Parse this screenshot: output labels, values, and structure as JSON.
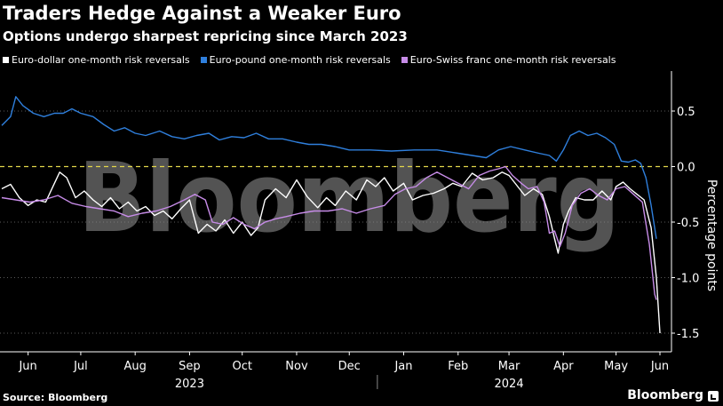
{
  "header": {
    "title": "Traders Hedge Against a Weaker Euro",
    "subtitle": "Options undergo sharpest repricing since March 2023"
  },
  "footer": {
    "source": "Source: Bloomberg",
    "brand": "Bloomberg"
  },
  "watermark": "Bloomberg",
  "colors": {
    "background": "#000000",
    "eurusd": "#ffffff",
    "eurgbp": "#2f7fdc",
    "eurchf": "#c78ce8",
    "zero_line": "#e3d64a",
    "grid": "#5a5a5a"
  },
  "chart_data": {
    "type": "line",
    "title": "Traders Hedge Against a Weaker Euro",
    "ylabel": "Percentage points",
    "ylim": [
      -1.55,
      0.8
    ],
    "yticks": [
      0.5,
      0.0,
      -0.5,
      -1.0,
      -1.5
    ],
    "ytick_labels": [
      "0.5",
      "0.0",
      "-0.5",
      "-1.0",
      "-1.5"
    ],
    "xlim": [
      0,
      375
    ],
    "x_unit": "days",
    "x_ticks": [
      {
        "label": "Jun",
        "x": 15
      },
      {
        "label": "Jul",
        "x": 45
      },
      {
        "label": "Aug",
        "x": 76
      },
      {
        "label": "Sep",
        "x": 107
      },
      {
        "label": "Oct",
        "x": 137
      },
      {
        "label": "Nov",
        "x": 168
      },
      {
        "label": "Dec",
        "x": 198
      },
      {
        "label": "Jan",
        "x": 229
      },
      {
        "label": "Feb",
        "x": 260
      },
      {
        "label": "Mar",
        "x": 289
      },
      {
        "label": "Apr",
        "x": 320
      },
      {
        "label": "May",
        "x": 350
      },
      {
        "label": "Jun",
        "x": 375
      }
    ],
    "year_labels": [
      {
        "label": "2023",
        "x": 107
      },
      {
        "label": "2024",
        "x": 289
      }
    ],
    "year_divider_x": 214,
    "reference_line": {
      "y": 0.0,
      "style": "dashed"
    },
    "grid": true,
    "legend_position": "top",
    "series": [
      {
        "name": "Euro-dollar one-month risk reversals",
        "color": "#ffffff",
        "points": [
          [
            0,
            -0.2
          ],
          [
            5,
            -0.16
          ],
          [
            10,
            -0.28
          ],
          [
            15,
            -0.35
          ],
          [
            20,
            -0.3
          ],
          [
            25,
            -0.32
          ],
          [
            30,
            -0.15
          ],
          [
            33,
            -0.05
          ],
          [
            37,
            -0.1
          ],
          [
            42,
            -0.28
          ],
          [
            47,
            -0.22
          ],
          [
            52,
            -0.3
          ],
          [
            57,
            -0.36
          ],
          [
            62,
            -0.28
          ],
          [
            67,
            -0.38
          ],
          [
            72,
            -0.32
          ],
          [
            77,
            -0.4
          ],
          [
            82,
            -0.36
          ],
          [
            87,
            -0.44
          ],
          [
            92,
            -0.4
          ],
          [
            97,
            -0.47
          ],
          [
            102,
            -0.38
          ],
          [
            107,
            -0.3
          ],
          [
            112,
            -0.6
          ],
          [
            117,
            -0.52
          ],
          [
            122,
            -0.58
          ],
          [
            127,
            -0.48
          ],
          [
            132,
            -0.6
          ],
          [
            137,
            -0.5
          ],
          [
            142,
            -0.62
          ],
          [
            146,
            -0.55
          ],
          [
            150,
            -0.3
          ],
          [
            156,
            -0.2
          ],
          [
            162,
            -0.28
          ],
          [
            168,
            -0.12
          ],
          [
            174,
            -0.27
          ],
          [
            180,
            -0.37
          ],
          [
            185,
            -0.28
          ],
          [
            190,
            -0.35
          ],
          [
            196,
            -0.22
          ],
          [
            202,
            -0.3
          ],
          [
            208,
            -0.12
          ],
          [
            213,
            -0.18
          ],
          [
            218,
            -0.1
          ],
          [
            223,
            -0.22
          ],
          [
            229,
            -0.15
          ],
          [
            234,
            -0.3
          ],
          [
            240,
            -0.26
          ],
          [
            246,
            -0.24
          ],
          [
            252,
            -0.2
          ],
          [
            257,
            -0.15
          ],
          [
            262,
            -0.18
          ],
          [
            268,
            -0.06
          ],
          [
            274,
            -0.12
          ],
          [
            280,
            -0.1
          ],
          [
            285,
            -0.05
          ],
          [
            289,
            -0.08
          ],
          [
            294,
            -0.18
          ],
          [
            298,
            -0.26
          ],
          [
            303,
            -0.2
          ],
          [
            308,
            -0.25
          ],
          [
            312,
            -0.45
          ],
          [
            315,
            -0.65
          ],
          [
            317,
            -0.78
          ],
          [
            320,
            -0.52
          ],
          [
            323,
            -0.4
          ],
          [
            327,
            -0.28
          ],
          [
            332,
            -0.3
          ],
          [
            337,
            -0.3
          ],
          [
            342,
            -0.22
          ],
          [
            347,
            -0.3
          ],
          [
            350,
            -0.18
          ],
          [
            354,
            -0.14
          ],
          [
            358,
            -0.2
          ],
          [
            362,
            -0.25
          ],
          [
            366,
            -0.3
          ],
          [
            370,
            -0.55
          ],
          [
            373,
            -1.0
          ],
          [
            375,
            -1.5
          ]
        ]
      },
      {
        "name": "Euro-pound one-month risk reversals",
        "color": "#2f7fdc",
        "points": [
          [
            0,
            0.37
          ],
          [
            5,
            0.45
          ],
          [
            8,
            0.63
          ],
          [
            12,
            0.55
          ],
          [
            18,
            0.48
          ],
          [
            24,
            0.45
          ],
          [
            30,
            0.48
          ],
          [
            35,
            0.48
          ],
          [
            40,
            0.52
          ],
          [
            45,
            0.48
          ],
          [
            52,
            0.45
          ],
          [
            58,
            0.38
          ],
          [
            64,
            0.32
          ],
          [
            70,
            0.35
          ],
          [
            76,
            0.3
          ],
          [
            82,
            0.28
          ],
          [
            90,
            0.32
          ],
          [
            97,
            0.27
          ],
          [
            104,
            0.25
          ],
          [
            111,
            0.28
          ],
          [
            118,
            0.3
          ],
          [
            124,
            0.24
          ],
          [
            131,
            0.27
          ],
          [
            138,
            0.26
          ],
          [
            145,
            0.3
          ],
          [
            152,
            0.25
          ],
          [
            160,
            0.25
          ],
          [
            168,
            0.22
          ],
          [
            175,
            0.2
          ],
          [
            182,
            0.2
          ],
          [
            190,
            0.18
          ],
          [
            198,
            0.15
          ],
          [
            210,
            0.15
          ],
          [
            222,
            0.14
          ],
          [
            235,
            0.15
          ],
          [
            248,
            0.15
          ],
          [
            260,
            0.12
          ],
          [
            268,
            0.1
          ],
          [
            276,
            0.08
          ],
          [
            283,
            0.15
          ],
          [
            290,
            0.18
          ],
          [
            298,
            0.15
          ],
          [
            306,
            0.12
          ],
          [
            312,
            0.1
          ],
          [
            316,
            0.05
          ],
          [
            320,
            0.15
          ],
          [
            324,
            0.28
          ],
          [
            329,
            0.32
          ],
          [
            334,
            0.28
          ],
          [
            339,
            0.3
          ],
          [
            344,
            0.26
          ],
          [
            349,
            0.2
          ],
          [
            353,
            0.05
          ],
          [
            357,
            0.04
          ],
          [
            361,
            0.06
          ],
          [
            364,
            0.03
          ],
          [
            367,
            -0.1
          ],
          [
            370,
            -0.35
          ],
          [
            373,
            -0.65
          ]
        ]
      },
      {
        "name": "Euro-Swiss franc one-month risk reversals",
        "color": "#c78ce8",
        "points": [
          [
            0,
            -0.28
          ],
          [
            8,
            -0.3
          ],
          [
            16,
            -0.32
          ],
          [
            24,
            -0.3
          ],
          [
            32,
            -0.26
          ],
          [
            40,
            -0.33
          ],
          [
            48,
            -0.36
          ],
          [
            56,
            -0.38
          ],
          [
            64,
            -0.4
          ],
          [
            72,
            -0.45
          ],
          [
            80,
            -0.42
          ],
          [
            88,
            -0.4
          ],
          [
            96,
            -0.36
          ],
          [
            104,
            -0.3
          ],
          [
            110,
            -0.25
          ],
          [
            116,
            -0.3
          ],
          [
            120,
            -0.5
          ],
          [
            126,
            -0.52
          ],
          [
            132,
            -0.46
          ],
          [
            138,
            -0.52
          ],
          [
            144,
            -0.56
          ],
          [
            150,
            -0.5
          ],
          [
            156,
            -0.47
          ],
          [
            162,
            -0.45
          ],
          [
            170,
            -0.42
          ],
          [
            178,
            -0.4
          ],
          [
            186,
            -0.4
          ],
          [
            194,
            -0.38
          ],
          [
            202,
            -0.42
          ],
          [
            210,
            -0.38
          ],
          [
            218,
            -0.35
          ],
          [
            224,
            -0.25
          ],
          [
            230,
            -0.2
          ],
          [
            236,
            -0.18
          ],
          [
            242,
            -0.1
          ],
          [
            248,
            -0.05
          ],
          [
            254,
            -0.1
          ],
          [
            260,
            -0.15
          ],
          [
            266,
            -0.2
          ],
          [
            272,
            -0.08
          ],
          [
            278,
            -0.04
          ],
          [
            283,
            -0.02
          ],
          [
            287,
            0.0
          ],
          [
            291,
            -0.08
          ],
          [
            296,
            -0.15
          ],
          [
            300,
            -0.2
          ],
          [
            305,
            -0.18
          ],
          [
            309,
            -0.32
          ],
          [
            312,
            -0.6
          ],
          [
            315,
            -0.58
          ],
          [
            318,
            -0.72
          ],
          [
            321,
            -0.6
          ],
          [
            325,
            -0.35
          ],
          [
            330,
            -0.24
          ],
          [
            335,
            -0.2
          ],
          [
            340,
            -0.26
          ],
          [
            345,
            -0.3
          ],
          [
            350,
            -0.2
          ],
          [
            355,
            -0.18
          ],
          [
            360,
            -0.25
          ],
          [
            365,
            -0.32
          ],
          [
            369,
            -0.7
          ],
          [
            372,
            -1.15
          ],
          [
            373,
            -1.2
          ]
        ]
      }
    ]
  }
}
